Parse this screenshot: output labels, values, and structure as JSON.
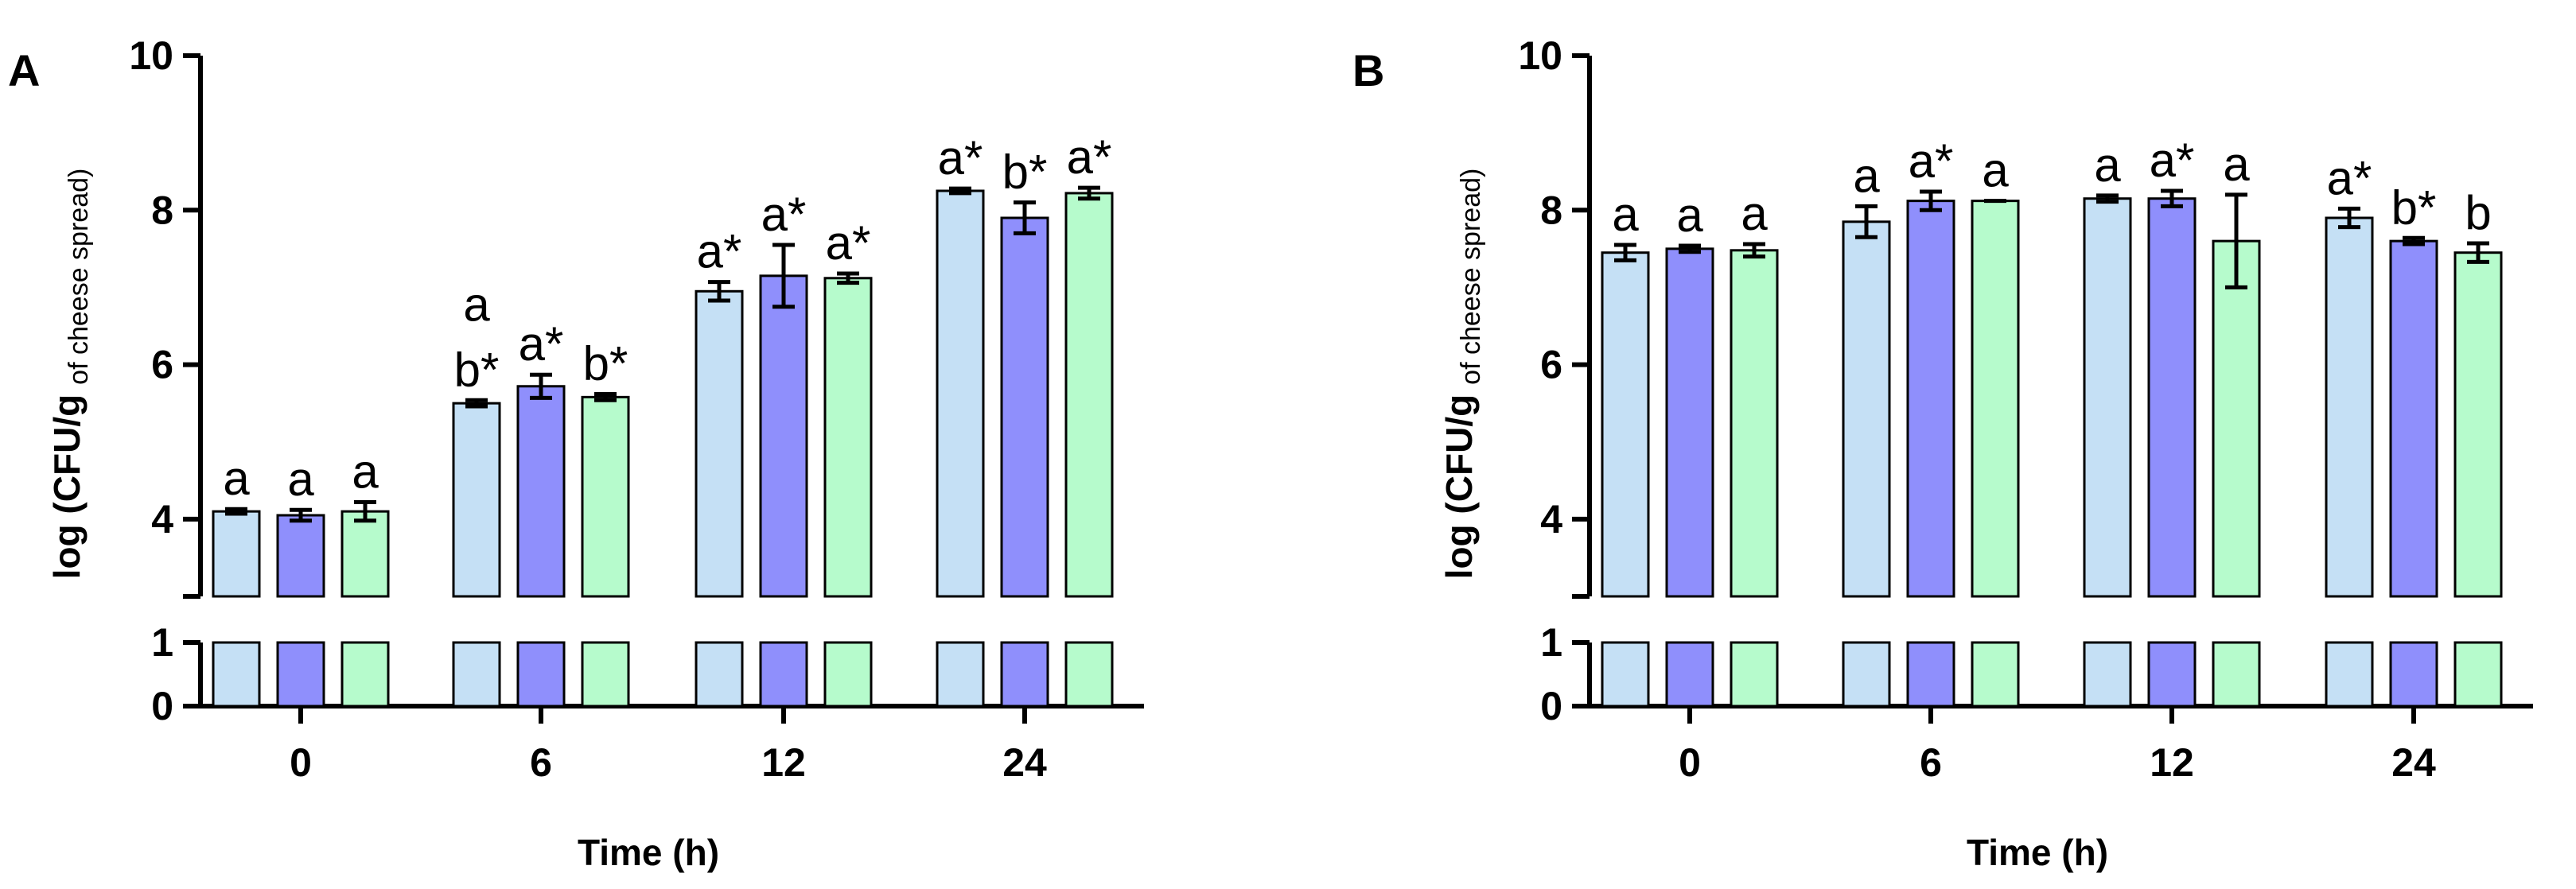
{
  "colors": {
    "series": [
      "#c5e0f5",
      "#8f8ffc",
      "#b6fbcc"
    ],
    "stroke": "#000000"
  },
  "chart_data": [
    {
      "panel": "A",
      "type": "bar",
      "categories": [
        "0",
        "6",
        "12",
        "24"
      ],
      "xlabel": "Time (h)",
      "ylabel_main": "log (CFU/g",
      "ylabel_sub": "of cheese spread)",
      "ylabel_close": ")",
      "ylim": [
        0,
        10
      ],
      "axis_break": [
        1,
        3
      ],
      "yticks_upper": [
        4,
        6,
        8,
        10
      ],
      "yticks_lower": [
        0,
        1
      ],
      "series": [
        {
          "values": [
            4.1,
            5.5,
            6.95,
            8.25
          ],
          "errors": [
            0.03,
            0.04,
            0.12,
            0.03
          ],
          "labels": [
            "a",
            "a|b*",
            "a*",
            "a*"
          ]
        },
        {
          "values": [
            4.05,
            5.72,
            7.15,
            7.9
          ],
          "errors": [
            0.07,
            0.15,
            0.4,
            0.2
          ],
          "labels": [
            "a",
            "a*",
            "a*",
            "b*"
          ]
        },
        {
          "values": [
            4.1,
            5.58,
            7.12,
            8.22
          ],
          "errors": [
            0.12,
            0.04,
            0.06,
            0.07
          ],
          "labels": [
            "a",
            "b*",
            "a*",
            "a*"
          ]
        }
      ]
    },
    {
      "panel": "B",
      "type": "bar",
      "categories": [
        "0",
        "6",
        "12",
        "24"
      ],
      "xlabel": "Time (h)",
      "ylabel_main": "log (CFU/g",
      "ylabel_sub": "of cheese spread)",
      "ylabel_close": ")",
      "ylim": [
        0,
        10
      ],
      "axis_break": [
        1,
        3
      ],
      "yticks_upper": [
        4,
        6,
        8,
        10
      ],
      "yticks_lower": [
        0,
        1
      ],
      "series": [
        {
          "values": [
            7.45,
            7.85,
            8.15,
            7.9
          ],
          "errors": [
            0.1,
            0.2,
            0.04,
            0.12
          ],
          "labels": [
            "a",
            "a",
            "a",
            "a*"
          ]
        },
        {
          "values": [
            7.5,
            8.12,
            8.15,
            7.6
          ],
          "errors": [
            0.04,
            0.12,
            0.1,
            0.04
          ],
          "labels": [
            "a",
            "a*",
            "a*",
            "b*"
          ]
        },
        {
          "values": [
            7.48,
            8.12,
            7.6,
            7.45
          ],
          "errors": [
            0.08,
            0.0,
            0.6,
            0.12
          ],
          "labels": [
            "a",
            "a",
            "a",
            "b"
          ]
        }
      ]
    }
  ]
}
